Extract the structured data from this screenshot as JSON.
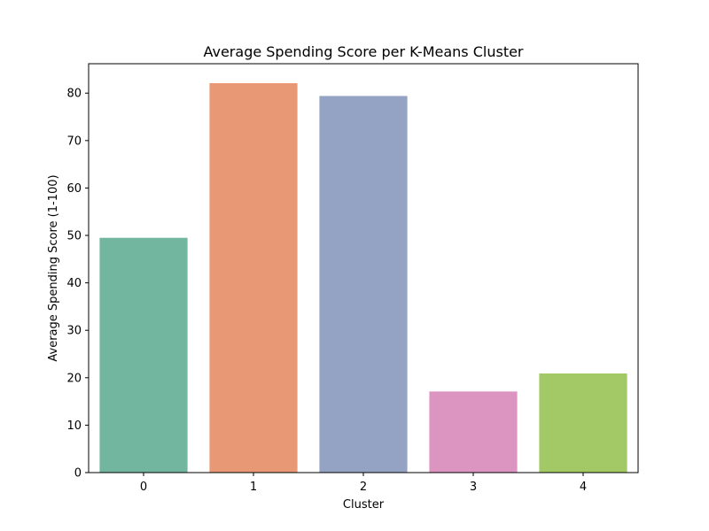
{
  "chart_data": {
    "type": "bar",
    "title": "Average Spending Score per K-Means Cluster",
    "xlabel": "Cluster",
    "ylabel": "Average Spending Score (1-100)",
    "categories": [
      "0",
      "1",
      "2",
      "3",
      "4"
    ],
    "values": [
      49.5,
      82.1,
      79.4,
      17.1,
      20.9
    ],
    "colors": [
      "#73b69f",
      "#e99875",
      "#94a3c3",
      "#dc95c1",
      "#a2c965"
    ],
    "ylim": [
      0,
      86.2
    ],
    "yticks": [
      0,
      10,
      20,
      30,
      40,
      50,
      60,
      70,
      80
    ],
    "grid": false,
    "legend": "none"
  }
}
